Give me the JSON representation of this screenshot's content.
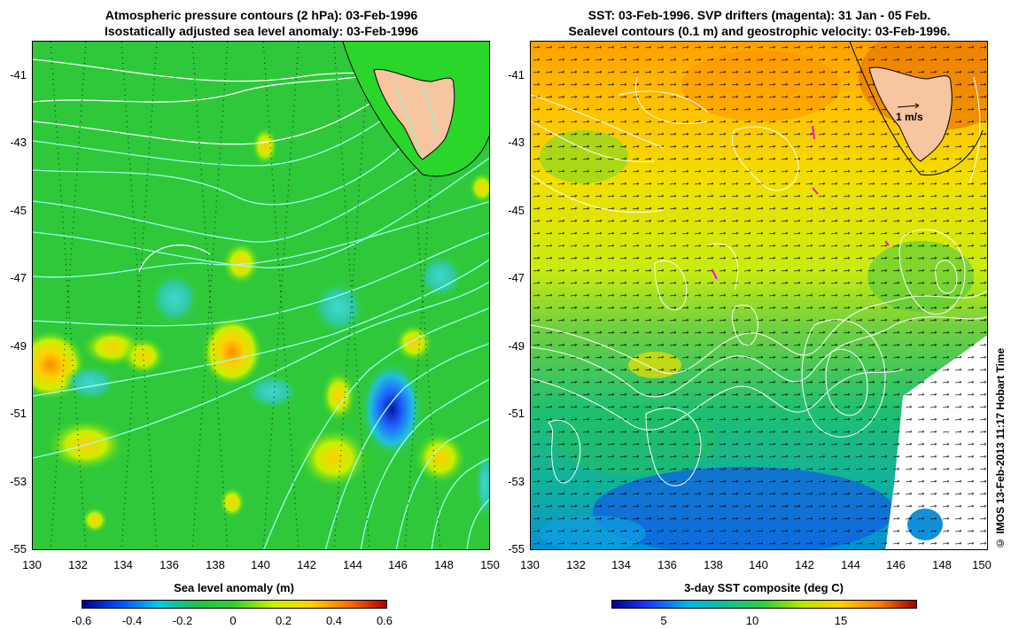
{
  "left_panel": {
    "title_line1": "Atmospheric pressure contours (2 hPa): 03-Feb-1996",
    "title_line2": "Isostatically adjusted sea level anomaly: 03-Feb-1996",
    "y_ticks": [
      "-41",
      "-43",
      "-45",
      "-47",
      "-49",
      "-51",
      "-53",
      "-55"
    ],
    "x_ticks": [
      "130",
      "132",
      "134",
      "136",
      "138",
      "140",
      "142",
      "144",
      "146",
      "148",
      "150"
    ],
    "colorbar_label": "Sea level anomaly (m)",
    "colorbar_ticks": [
      "-0.6",
      "-0.4",
      "-0.2",
      "0",
      "0.2",
      "0.4",
      "0.6"
    ]
  },
  "right_panel": {
    "title_line1": "SST: 03-Feb-1996. SVP drifters (magenta): 31 Jan - 05 Feb.",
    "title_line2": "Sealevel contours (0.1 m) and geostrophic velocity: 03-Feb-1996.",
    "y_ticks": [
      "-41",
      "-43",
      "-45",
      "-47",
      "-49",
      "-51",
      "-53",
      "-55"
    ],
    "x_ticks": [
      "130",
      "132",
      "134",
      "136",
      "138",
      "140",
      "142",
      "144",
      "146",
      "148",
      "150"
    ],
    "scale_label": "1 m/s",
    "colorbar_label": "3-day SST composite (deg C)",
    "colorbar_ticks": [
      "5",
      "10",
      "15"
    ]
  },
  "copyright": "© IMOS 13-Feb-2013 11:17 Hobart Time",
  "colors": {
    "land": "#f7c59f",
    "sla_ramp": [
      "#00008b",
      "#0050ff",
      "#00c8e6",
      "#20c050",
      "#30d030",
      "#c8f000",
      "#ffd000",
      "#ff7000",
      "#b00000"
    ],
    "sst_ramp": [
      "#00008b",
      "#1e40ff",
      "#00b4e6",
      "#10c090",
      "#30d040",
      "#b8e600",
      "#ffd000",
      "#ff8000",
      "#a00000"
    ],
    "contour_white": "#ffffff",
    "contour_cyan": "#7fffd4",
    "drifter": "#ff00ff"
  }
}
